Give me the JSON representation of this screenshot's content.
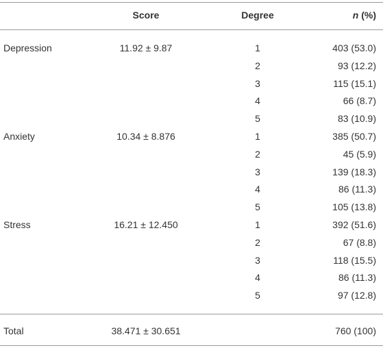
{
  "header": {
    "columns": [
      "Score",
      "Degree",
      {
        "italic": "n",
        "text": "(%)"
      }
    ]
  },
  "groups": [
    {
      "label": "Depression",
      "score": "11.92 ± 9.87",
      "rows": [
        {
          "degree": 1,
          "n": "403 (53.0)"
        },
        {
          "degree": 2,
          "n": "93 (12.2)"
        },
        {
          "degree": 3,
          "n": "115 (15.1)"
        },
        {
          "degree": 4,
          "n": "66 (8.7)"
        },
        {
          "degree": 5,
          "n": "83 (10.9)"
        }
      ]
    },
    {
      "label": "Anxiety",
      "score": "10.34 ± 8.876",
      "rows": [
        {
          "degree": 1,
          "n": "385 (50.7)"
        },
        {
          "degree": 2,
          "n": "45 (5.9)"
        },
        {
          "degree": 3,
          "n": "139 (18.3)"
        },
        {
          "degree": 4,
          "n": "86 (11.3)"
        },
        {
          "degree": 5,
          "n": "105 (13.8)"
        }
      ]
    },
    {
      "label": "Stress",
      "score": "16.21 ± 12.450",
      "rows": [
        {
          "degree": 1,
          "n": "392 (51.6)"
        },
        {
          "degree": 2,
          "n": "67 (8.8)"
        },
        {
          "degree": 3,
          "n": "118 (15.5)"
        },
        {
          "degree": 4,
          "n": "86 (11.3)"
        },
        {
          "degree": 5,
          "n": "97 (12.8)"
        }
      ]
    }
  ],
  "total": {
    "label": "Total",
    "score": "38.471 ± 30.651",
    "n": "760 (100)"
  }
}
